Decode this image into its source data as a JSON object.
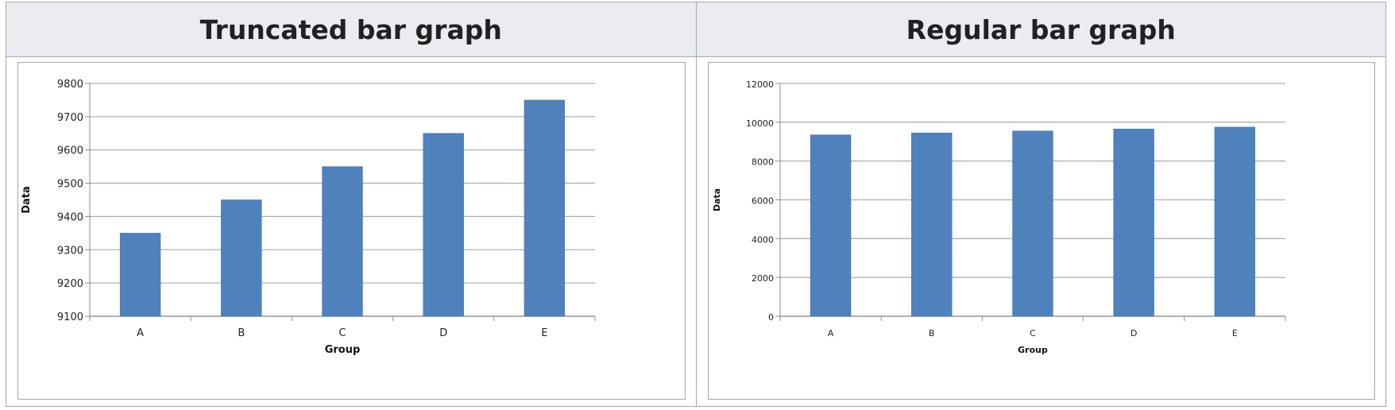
{
  "chart_data": [
    {
      "type": "bar",
      "title": "Truncated bar graph",
      "categories": [
        "A",
        "B",
        "C",
        "D",
        "E"
      ],
      "values": [
        9350,
        9450,
        9550,
        9650,
        9750
      ],
      "xlabel": "Group",
      "ylabel": "Data",
      "ylim": [
        9100,
        9800
      ],
      "yticks": [
        9100,
        9200,
        9300,
        9400,
        9500,
        9600,
        9700,
        9800
      ],
      "grid": true,
      "bar_color": "#4f81bd"
    },
    {
      "type": "bar",
      "title": "Regular bar graph",
      "categories": [
        "A",
        "B",
        "C",
        "D",
        "E"
      ],
      "values": [
        9350,
        9450,
        9550,
        9650,
        9750
      ],
      "xlabel": "Group",
      "ylabel": "Data",
      "ylim": [
        0,
        12000
      ],
      "yticks": [
        0,
        2000,
        4000,
        6000,
        8000,
        10000,
        12000
      ],
      "grid": true,
      "bar_color": "#4f81bd"
    }
  ]
}
